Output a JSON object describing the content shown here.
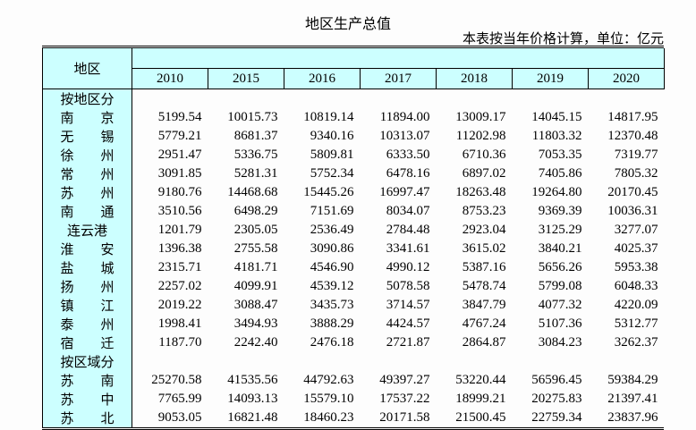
{
  "page": {
    "title": "地区生产总值",
    "note": "本表按当年价格计算，单位：亿元"
  },
  "table": {
    "corner_label": "地区",
    "years": [
      "2010",
      "2015",
      "2016",
      "2017",
      "2018",
      "2019",
      "2020"
    ]
  },
  "colors": {
    "page_bg": "#FDFDFD",
    "header_bg": "#CCFFFF",
    "border": "#000000"
  },
  "chart_data": {
    "type": "table",
    "title": "地区生产总值",
    "unit_note": "本表按当年价格计算，单位：亿元",
    "columns": [
      "地区",
      "2010",
      "2015",
      "2016",
      "2017",
      "2018",
      "2019",
      "2020"
    ],
    "rows": [
      {
        "name": "按地区分",
        "display": "按地区分",
        "group": true,
        "values": []
      },
      {
        "name": "南京",
        "display": "南　　京",
        "values": [
          5199.54,
          10015.73,
          10819.14,
          11894.0,
          13009.17,
          14045.15,
          14817.95
        ]
      },
      {
        "name": "无锡",
        "display": "无　　锡",
        "values": [
          5779.21,
          8681.37,
          9340.16,
          10313.07,
          11202.98,
          11803.32,
          12370.48
        ]
      },
      {
        "name": "徐州",
        "display": "徐　　州",
        "values": [
          2951.47,
          5336.75,
          5809.81,
          6333.5,
          6710.36,
          7053.35,
          7319.77
        ]
      },
      {
        "name": "常州",
        "display": "常　　州",
        "values": [
          3091.85,
          5281.31,
          5752.34,
          6478.16,
          6897.02,
          7405.86,
          7805.32
        ]
      },
      {
        "name": "苏州",
        "display": "苏　　州",
        "values": [
          9180.76,
          14468.68,
          15445.26,
          16997.47,
          18263.48,
          19264.8,
          20170.45
        ]
      },
      {
        "name": "南通",
        "display": "南　　通",
        "values": [
          3510.56,
          6498.29,
          7151.69,
          8034.07,
          8753.23,
          9369.39,
          10036.31
        ]
      },
      {
        "name": "连云港",
        "display": "连云港",
        "values": [
          1201.79,
          2305.05,
          2536.49,
          2784.48,
          2923.04,
          3125.29,
          3277.07
        ]
      },
      {
        "name": "淮安",
        "display": "淮　　安",
        "values": [
          1396.38,
          2755.58,
          3090.86,
          3341.61,
          3615.02,
          3840.21,
          4025.37
        ]
      },
      {
        "name": "盐城",
        "display": "盐　　城",
        "values": [
          2315.71,
          4181.71,
          4546.9,
          4990.12,
          5387.16,
          5656.26,
          5953.38
        ]
      },
      {
        "name": "扬州",
        "display": "扬　　州",
        "values": [
          2257.02,
          4099.91,
          4539.12,
          5078.58,
          5478.74,
          5799.08,
          6048.33
        ]
      },
      {
        "name": "镇江",
        "display": "镇　　江",
        "values": [
          2019.22,
          3088.47,
          3435.73,
          3714.57,
          3847.79,
          4077.32,
          4220.09
        ]
      },
      {
        "name": "泰州",
        "display": "泰　　州",
        "values": [
          1998.41,
          3494.93,
          3888.29,
          4424.57,
          4767.24,
          5107.36,
          5312.77
        ]
      },
      {
        "name": "宿迁",
        "display": "宿　　迁",
        "values": [
          1187.7,
          2242.4,
          2476.18,
          2721.87,
          2864.87,
          3084.23,
          3262.37
        ]
      },
      {
        "name": "按区域分",
        "display": "按区域分",
        "group": true,
        "values": []
      },
      {
        "name": "苏南",
        "display": "苏　　南",
        "values": [
          25270.58,
          41535.56,
          44792.63,
          49397.27,
          53220.44,
          56596.45,
          59384.29
        ]
      },
      {
        "name": "苏中",
        "display": "苏　　中",
        "values": [
          7765.99,
          14093.13,
          15579.1,
          17537.22,
          18999.21,
          20275.83,
          21397.41
        ]
      },
      {
        "name": "苏北",
        "display": "苏　　北",
        "values": [
          9053.05,
          16821.48,
          18460.23,
          20171.58,
          21500.45,
          22759.34,
          23837.96
        ]
      }
    ]
  }
}
